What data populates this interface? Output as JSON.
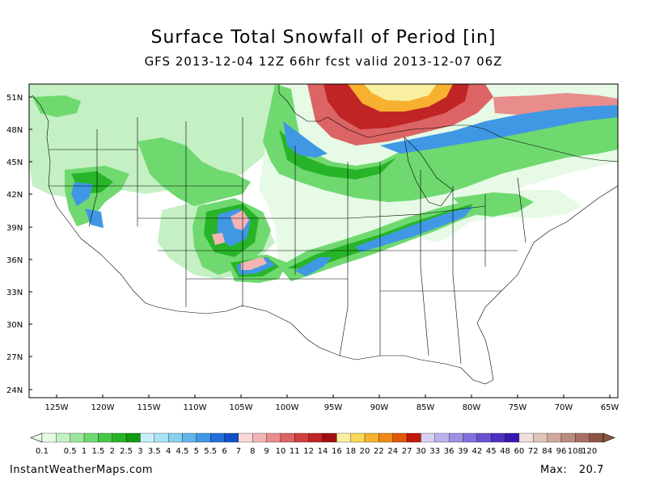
{
  "header": {
    "title": "Surface Total Snowfall of Period [in]",
    "subtitle": "GFS 2013-12-04 12Z 66hr fcst valid 2013-12-07 06Z"
  },
  "map": {
    "lat_labels": [
      "51N",
      "48N",
      "45N",
      "42N",
      "39N",
      "36N",
      "33N",
      "30N",
      "27N",
      "24N"
    ],
    "lon_labels": [
      "125W",
      "120W",
      "115W",
      "110W",
      "105W",
      "100W",
      "95W",
      "90W",
      "85W",
      "80W",
      "75W",
      "70W",
      "65W"
    ]
  },
  "colorbar": {
    "levels": [
      "0.1",
      "0.5",
      "1",
      "1.5",
      "2",
      "2.5",
      "3",
      "3.5",
      "4",
      "4.5",
      "5",
      "5.5",
      "6",
      "7",
      "8",
      "9",
      "10",
      "11",
      "12",
      "14",
      "16",
      "18",
      "20",
      "22",
      "24",
      "27",
      "30",
      "33",
      "36",
      "39",
      "42",
      "45",
      "48",
      "60",
      "72",
      "84",
      "96",
      "108",
      "120"
    ],
    "colors": [
      "#e6fae6",
      "#c4f0c4",
      "#9ae69a",
      "#6fd96f",
      "#48c848",
      "#28b428",
      "#109a10",
      "#c8f0f8",
      "#a8e4f4",
      "#88d0f0",
      "#64b4ec",
      "#4098e4",
      "#2470d8",
      "#1050c8",
      "#f8d8d8",
      "#f4b4b4",
      "#e88c8c",
      "#dc6464",
      "#d04040",
      "#c02424",
      "#a01010",
      "#f8f0a0",
      "#f8d858",
      "#f8b030",
      "#f08818",
      "#e05808",
      "#c01808",
      "#d8d0f0",
      "#bcb0ec",
      "#a090e4",
      "#8470dc",
      "#6850d0",
      "#5030c0",
      "#3818b0",
      "#f0e0dc",
      "#e0c4bc",
      "#d0a89c",
      "#bc8c80",
      "#a87064",
      "#8c5444"
    ]
  },
  "footer": {
    "site": "InstantWeatherMaps.com",
    "max_label": "Max:",
    "max_value": "20.7"
  }
}
